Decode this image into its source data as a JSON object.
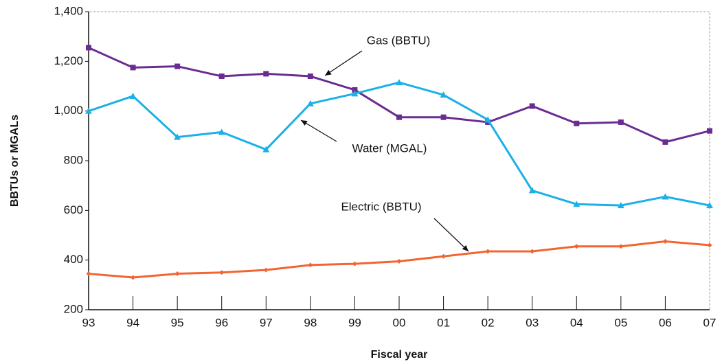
{
  "chart_data": {
    "type": "line",
    "x_label": "Fiscal year",
    "y_label": "BBTUs or MGALs",
    "categories": [
      "93",
      "94",
      "95",
      "96",
      "97",
      "98",
      "99",
      "00",
      "01",
      "02",
      "03",
      "04",
      "05",
      "06",
      "07"
    ],
    "series": [
      {
        "name": "Gas (BBTU)",
        "color": "#6a2c91",
        "marker": "square",
        "values": [
          1255,
          1175,
          1180,
          1140,
          1150,
          1140,
          1085,
          975,
          975,
          955,
          1020,
          950,
          955,
          875,
          920
        ]
      },
      {
        "name": "Water (MGAL)",
        "color": "#1ab0e8",
        "marker": "triangle",
        "values": [
          1000,
          1060,
          895,
          915,
          845,
          1030,
          1070,
          1115,
          1065,
          965,
          680,
          625,
          620,
          655,
          620
        ]
      },
      {
        "name": "Electric (BBTU)",
        "color": "#f26430",
        "marker": "diamond",
        "values": [
          345,
          330,
          345,
          350,
          360,
          380,
          385,
          395,
          415,
          435,
          435,
          455,
          455,
          475,
          460
        ]
      }
    ],
    "ylim": [
      200,
      1400
    ],
    "yticks": [
      200,
      400,
      600,
      800,
      {
        "value": 1000,
        "label": "1,000"
      },
      {
        "value": 1200,
        "label": "1,200"
      },
      {
        "value": 1400,
        "label": "1,400"
      }
    ],
    "grid": false
  }
}
